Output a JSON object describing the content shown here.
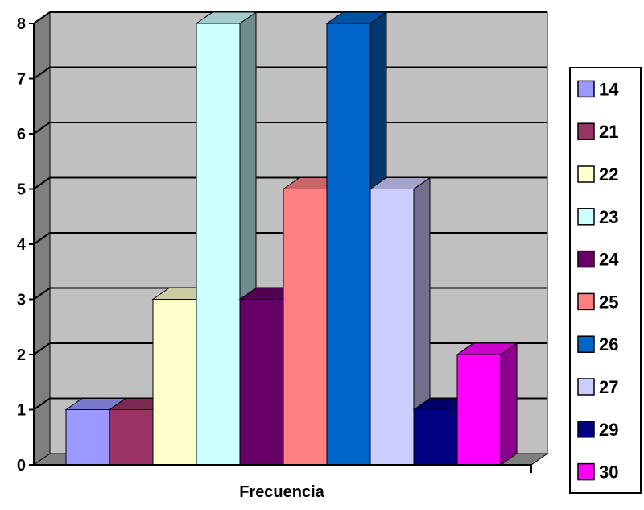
{
  "chart_data": {
    "type": "bar",
    "title": "",
    "xlabel": "Frecuencia",
    "ylabel": "",
    "ylim": [
      0,
      8
    ],
    "yticks": [
      "0",
      "1",
      "2",
      "3",
      "4",
      "5",
      "6",
      "7",
      "8"
    ],
    "grid": true,
    "legend_position": "right",
    "series": [
      {
        "name": "14",
        "value": 1,
        "color": "#9999FF"
      },
      {
        "name": "21",
        "value": 1,
        "color": "#993366"
      },
      {
        "name": "22",
        "value": 3,
        "color": "#FFFFCC"
      },
      {
        "name": "23",
        "value": 8,
        "color": "#CCFFFF"
      },
      {
        "name": "24",
        "value": 3,
        "color": "#660066"
      },
      {
        "name": "25",
        "value": 5,
        "color": "#FF8080"
      },
      {
        "name": "26",
        "value": 8,
        "color": "#0066CC"
      },
      {
        "name": "27",
        "value": 5,
        "color": "#CCCCFF"
      },
      {
        "name": "29",
        "value": 1,
        "color": "#000080"
      },
      {
        "name": "30",
        "value": 2,
        "color": "#FF00FF"
      }
    ]
  },
  "colors": {
    "plot_back": "#C0C0C0",
    "plot_side": "#7F7F7F",
    "floor": "#808080",
    "grid": "#000000"
  }
}
